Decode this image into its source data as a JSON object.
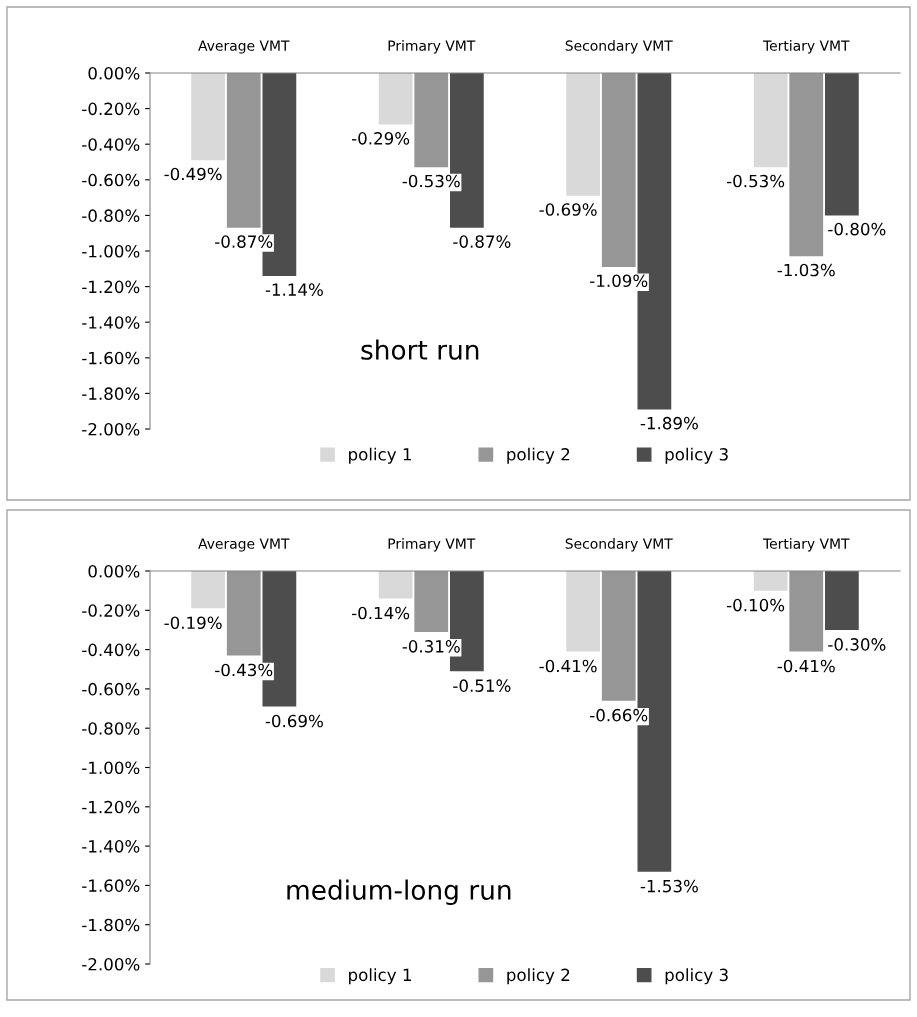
{
  "chart_data": [
    {
      "type": "bar",
      "categories": [
        "Average VMT",
        "Primary VMT",
        "Secondary VMT",
        "Tertiary VMT"
      ],
      "ylim": [
        -2,
        0
      ],
      "yticks": [
        {
          "value": 0,
          "label": "0.00%"
        },
        {
          "value": -0.2,
          "label": "-0.20%"
        },
        {
          "value": -0.4,
          "label": "-0.40%"
        },
        {
          "value": -0.6,
          "label": "-0.60%"
        },
        {
          "value": -0.8,
          "label": "-0.80%"
        },
        {
          "value": -1.0,
          "label": "-1.00%"
        },
        {
          "value": -1.2,
          "label": "-1.20%"
        },
        {
          "value": -1.4,
          "label": "-1.40%"
        },
        {
          "value": -1.6,
          "label": "-1.60%"
        },
        {
          "value": -1.8,
          "label": "-1.80%"
        },
        {
          "value": -2.0,
          "label": "-2.00%"
        }
      ],
      "grid": false,
      "legend": "bottom",
      "annotations": [
        "short run"
      ],
      "series": [
        {
          "name": "policy 1",
          "color": "#d9d9d9",
          "values": [
            -0.49,
            -0.29,
            -0.69,
            -0.53
          ],
          "value_labels": [
            "-0.49%",
            "-0.29%",
            "-0.69%",
            "-0.53%"
          ]
        },
        {
          "name": "policy 2",
          "color": "#969696",
          "values": [
            -0.87,
            -0.53,
            -1.09,
            -1.03
          ],
          "value_labels": [
            "-0.87%",
            "-0.53%",
            "-1.09%",
            "-1.03%"
          ]
        },
        {
          "name": "policy 3",
          "color": "#4d4d4d",
          "values": [
            -1.14,
            -0.87,
            -1.89,
            -0.8
          ],
          "value_labels": [
            "-1.14%",
            "-0.87%",
            "-1.89%",
            "-0.80%"
          ]
        }
      ]
    },
    {
      "type": "bar",
      "categories": [
        "Average VMT",
        "Primary VMT",
        "Secondary VMT",
        "Tertiary VMT"
      ],
      "ylim": [
        -2,
        0
      ],
      "yticks": [
        {
          "value": 0,
          "label": "0.00%"
        },
        {
          "value": -0.2,
          "label": "-0.20%"
        },
        {
          "value": -0.4,
          "label": "-0.40%"
        },
        {
          "value": -0.6,
          "label": "-0.60%"
        },
        {
          "value": -0.8,
          "label": "-0.80%"
        },
        {
          "value": -1.0,
          "label": "-1.00%"
        },
        {
          "value": -1.2,
          "label": "-1.20%"
        },
        {
          "value": -1.4,
          "label": "-1.40%"
        },
        {
          "value": -1.6,
          "label": "-1.60%"
        },
        {
          "value": -1.8,
          "label": "-1.80%"
        },
        {
          "value": -2.0,
          "label": "-2.00%"
        }
      ],
      "grid": false,
      "legend": "bottom",
      "annotations": [
        "medium-long run"
      ],
      "series": [
        {
          "name": "policy 1",
          "color": "#d9d9d9",
          "values": [
            -0.19,
            -0.14,
            -0.41,
            -0.1
          ],
          "value_labels": [
            "-0.19%",
            "-0.14%",
            "-0.41%",
            "-0.10%"
          ]
        },
        {
          "name": "policy 2",
          "color": "#969696",
          "values": [
            -0.43,
            -0.31,
            -0.66,
            -0.41
          ],
          "value_labels": [
            "-0.43%",
            "-0.31%",
            "-0.66%",
            "-0.41%"
          ]
        },
        {
          "name": "policy 3",
          "color": "#4d4d4d",
          "values": [
            -0.69,
            -0.51,
            -1.53,
            -0.3
          ],
          "value_labels": [
            "-0.69%",
            "-0.51%",
            "-1.53%",
            "-0.30%"
          ]
        }
      ]
    }
  ]
}
